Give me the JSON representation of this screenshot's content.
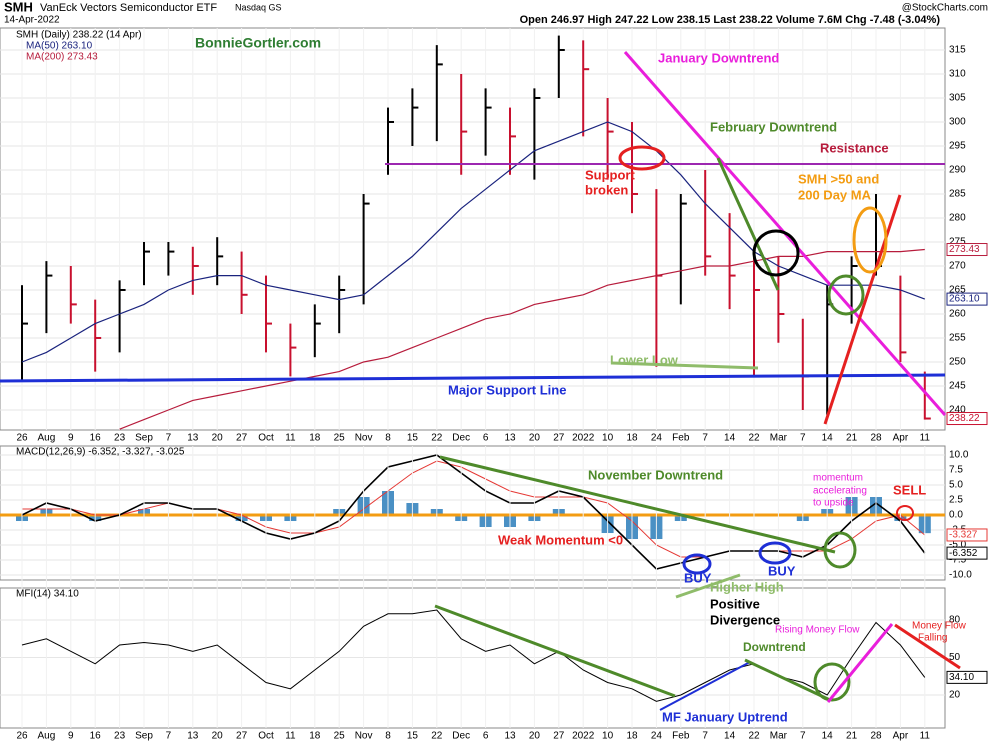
{
  "header": {
    "symbol": "SMH",
    "name": "VanEck Vectors Semiconductor ETF",
    "exchange": "Nasdaq GS",
    "date": "14-Apr-2022",
    "source": "@StockCharts.com",
    "quote": "Open 246.97  High 247.22  Low 238.15  Last 238.22  Volume 7.6M  Chg -7.48 (-3.04%)",
    "site": "BonnieGortler.com"
  },
  "annotations": {
    "jan": "January Downtrend",
    "feb": "February Downtrend",
    "res": "Resistance",
    "sup1": "Support",
    "sup2": "broken",
    "sma1": "SMH >50 and",
    "sma2": "200 Day MA",
    "low": "Lower Low",
    "major": "Major Support Line",
    "nov": "November Downtrend",
    "weak": "Weak Momentum <0",
    "buy1": "BUY",
    "buy2": "BUY",
    "hh": "Higher High",
    "pd1": "Positive",
    "pd2": "Divergence",
    "mom1": "momentum",
    "mom2": "accelerating",
    "mom3": "to upside",
    "sell": "SELL",
    "down": "Downtrend",
    "mfj": "MF January Uptrend",
    "rmf": "Rising Money Flow",
    "mf1": "Money Flow",
    "mf2": "Falling"
  },
  "chart_data": [
    {
      "type": "ohlc",
      "legend": "SMH (Daily) 238.22 (14 Apr)",
      "up_color": "#000000",
      "down_color": "#c8102e",
      "categories": [
        "26",
        "Aug",
        "9",
        "16",
        "23",
        "Sep",
        "7",
        "13",
        "20",
        "27",
        "Oct",
        "11",
        "18",
        "25",
        "Nov",
        "8",
        "15",
        "22",
        "Dec",
        "6",
        "13",
        "20",
        "27",
        "2022",
        "10",
        "18",
        "24",
        "Feb",
        "7",
        "14",
        "22",
        "Mar",
        "7",
        "14",
        "21",
        "28",
        "Apr",
        "11"
      ],
      "high": [
        266,
        271,
        270,
        263,
        267,
        275,
        275,
        274,
        276,
        273,
        268,
        258,
        262,
        268,
        285,
        303,
        307,
        316,
        310,
        307,
        303,
        307,
        318,
        317,
        305,
        300,
        286,
        285,
        290,
        281,
        273,
        272,
        259,
        266,
        272,
        285,
        268,
        248
      ],
      "low": [
        246,
        256,
        258,
        248,
        252,
        266,
        268,
        264,
        266,
        260,
        252,
        247,
        251,
        256,
        262,
        289,
        295,
        296,
        289,
        293,
        289,
        288,
        305,
        297,
        288,
        281,
        249,
        262,
        268,
        261,
        247,
        254,
        240,
        239,
        258,
        268,
        250,
        238
      ],
      "close": [
        258,
        268,
        262,
        255,
        265,
        273,
        273,
        270,
        272,
        264,
        258,
        253,
        258,
        265,
        283,
        300,
        303,
        312,
        298,
        303,
        297,
        305,
        315,
        311,
        298,
        285,
        268,
        283,
        272,
        268,
        265,
        260,
        247,
        262,
        270,
        270,
        252,
        238.22
      ],
      "series": [
        {
          "name": "MA(50) 263.10",
          "color": "#1a237e",
          "last_label": "263.10",
          "values": [
            250,
            252,
            255,
            258,
            260,
            262,
            265,
            267,
            268,
            268,
            266,
            265,
            264,
            263,
            264,
            268,
            272,
            277,
            282,
            286,
            290,
            294,
            296,
            298,
            300,
            298,
            294,
            289,
            283,
            278,
            273,
            270,
            268,
            266,
            266,
            266,
            265,
            263.1
          ]
        },
        {
          "name": "MA(200) 273.43",
          "color": "#b71c3c",
          "last_label": "273.43",
          "values": [
            null,
            null,
            null,
            null,
            236,
            238,
            240,
            242,
            243,
            244,
            245,
            246,
            247,
            248,
            250,
            251,
            253,
            255,
            257,
            259,
            260,
            262,
            263,
            264,
            266,
            267,
            268,
            269,
            270,
            270,
            271,
            272,
            272,
            273,
            273,
            273,
            273,
            273.43
          ]
        }
      ],
      "last_label": "238.22",
      "ylim": [
        235.83,
        319.58
      ],
      "yticks": [
        240,
        245,
        250,
        255,
        260,
        265,
        270,
        275,
        280,
        285,
        290,
        295,
        300,
        305,
        310,
        315
      ]
    },
    {
      "type": "macd",
      "legend": "MACD(12,26,9) -6.352, -3.327, -3.025",
      "series": [
        {
          "name": "MACD",
          "color": "#000000",
          "last_label": "-6.352",
          "values": [
            0,
            2,
            1,
            -1,
            0,
            2,
            2,
            1,
            1,
            -1,
            -3,
            -4,
            -3,
            -1,
            4,
            8,
            9,
            10,
            7,
            4,
            2,
            2,
            4,
            3,
            -1,
            -5,
            -9,
            -8,
            -7,
            -6,
            -6,
            -6,
            -7,
            -5,
            -1,
            2,
            -1,
            -6.352
          ]
        },
        {
          "name": "Signal",
          "color": "#e53935",
          "last_label": "-3.327",
          "values": [
            1,
            1,
            1,
            0,
            0,
            1,
            2,
            1,
            1,
            0,
            -2,
            -3,
            -3,
            -2,
            1,
            4,
            7,
            9,
            8,
            6,
            4,
            3,
            3,
            3,
            2,
            -1,
            -5,
            -7,
            -7,
            -6,
            -6,
            -6,
            -6,
            -6,
            -4,
            -1,
            0,
            -3.327
          ]
        },
        {
          "name": "Histogram",
          "color": "#4a90c4",
          "values": [
            -1,
            1,
            0,
            -1,
            0,
            1,
            0,
            0,
            0,
            -1,
            -1,
            -1,
            0,
            1,
            3,
            4,
            2,
            1,
            -1,
            -2,
            -2,
            -1,
            1,
            0,
            -3,
            -4,
            -4,
            -1,
            0,
            0,
            0,
            0,
            -1,
            1,
            3,
            3,
            -1,
            -3.025
          ]
        }
      ],
      "ylim": [
        -10.83,
        11.5
      ],
      "yticks": [
        {
          "value": -10,
          "label": "-10.0"
        },
        {
          "value": -7.5,
          "label": "-7.5"
        },
        {
          "value": -5,
          "label": "-5.0"
        },
        {
          "value": -2.5,
          "label": "-2.5"
        },
        {
          "value": 0,
          "label": "0.0"
        },
        {
          "value": 2.5,
          "label": "2.5"
        },
        {
          "value": 5,
          "label": "5.0"
        },
        {
          "value": 7.5,
          "label": "7.5"
        },
        {
          "value": 10,
          "label": "10.0"
        }
      ]
    },
    {
      "type": "line",
      "legend": "MFI(14) 34.10",
      "color": "#000000",
      "last_label": "34.10",
      "categories": [
        "26",
        "Aug",
        "9",
        "16",
        "23",
        "Sep",
        "7",
        "13",
        "20",
        "27",
        "Oct",
        "11",
        "18",
        "25",
        "Nov",
        "8",
        "15",
        "22",
        "Dec",
        "6",
        "13",
        "20",
        "27",
        "2022",
        "10",
        "18",
        "24",
        "Feb",
        "7",
        "14",
        "22",
        "Mar",
        "7",
        "14",
        "21",
        "28",
        "Apr",
        "11"
      ],
      "values": [
        60,
        65,
        55,
        45,
        60,
        62,
        60,
        55,
        60,
        45,
        30,
        25,
        40,
        55,
        75,
        85,
        85,
        88,
        65,
        55,
        60,
        45,
        55,
        40,
        30,
        25,
        15,
        20,
        30,
        40,
        45,
        35,
        30,
        20,
        50,
        78,
        60,
        34.1
      ],
      "ylim": [
        -6.4,
        105.6
      ],
      "yticks": [
        20,
        50,
        80
      ]
    }
  ]
}
